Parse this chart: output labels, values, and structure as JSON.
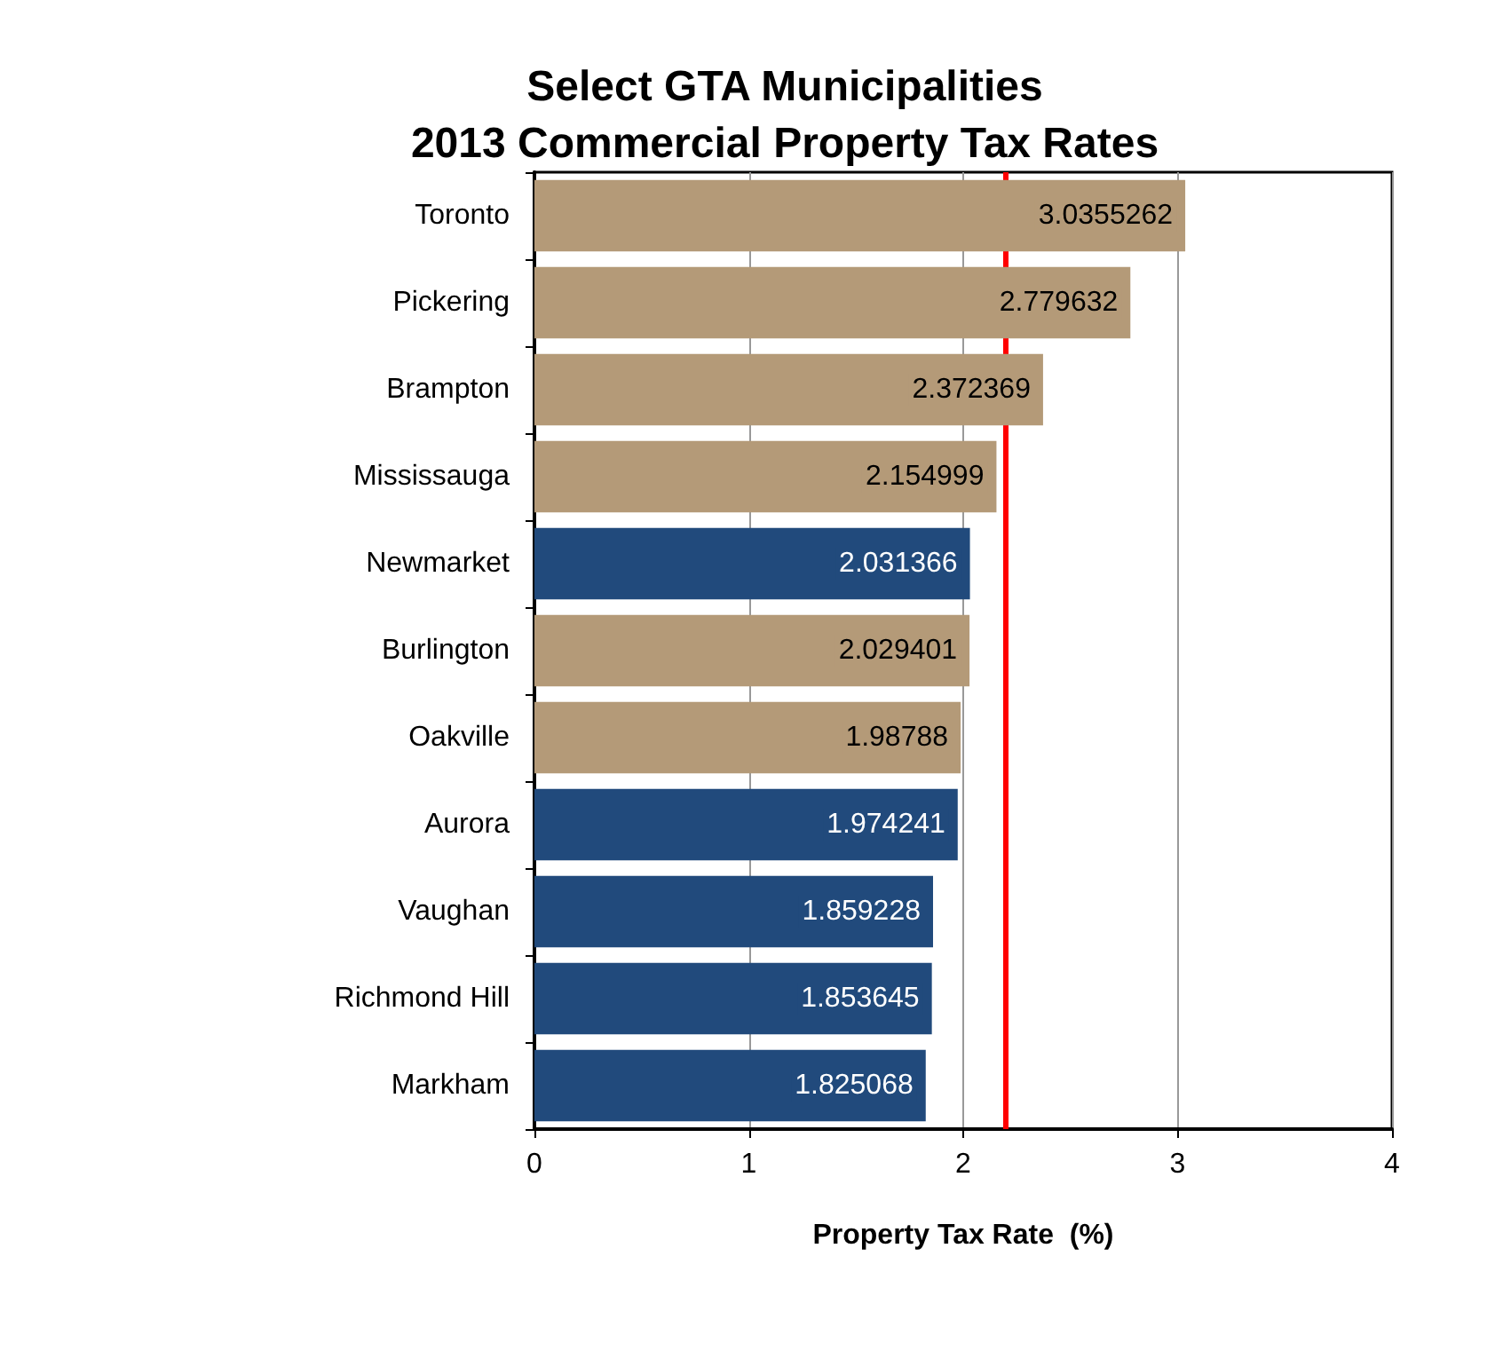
{
  "chart_data": {
    "type": "bar",
    "orientation": "horizontal",
    "title": "Select GTA Municipalities\n2013 Commercial Property Tax Rates",
    "xlabel": "Property Tax Rate  (%)",
    "categories": [
      "Toronto",
      "Pickering",
      "Brampton",
      "Mississauga",
      "Newmarket",
      "Burlington",
      "Oakville",
      "Aurora",
      "Vaughan",
      "Richmond Hill",
      "Markham"
    ],
    "values": [
      3.0355262,
      2.779632,
      2.372369,
      2.154999,
      2.031366,
      2.029401,
      1.98788,
      1.974241,
      1.859228,
      1.853645,
      1.825068
    ],
    "colors": [
      "#b49a78",
      "#b49a78",
      "#b49a78",
      "#b49a78",
      "#214a7c",
      "#b49a78",
      "#b49a78",
      "#214a7c",
      "#214a7c",
      "#214a7c",
      "#214a7c"
    ],
    "data_labels": true,
    "xlim": [
      0,
      4
    ],
    "xticks": [
      0,
      1,
      2,
      3,
      4
    ],
    "grid": "x",
    "ref_lines": [
      {
        "axis": "x",
        "value": 2.2,
        "color": "#ff0000"
      }
    ]
  }
}
